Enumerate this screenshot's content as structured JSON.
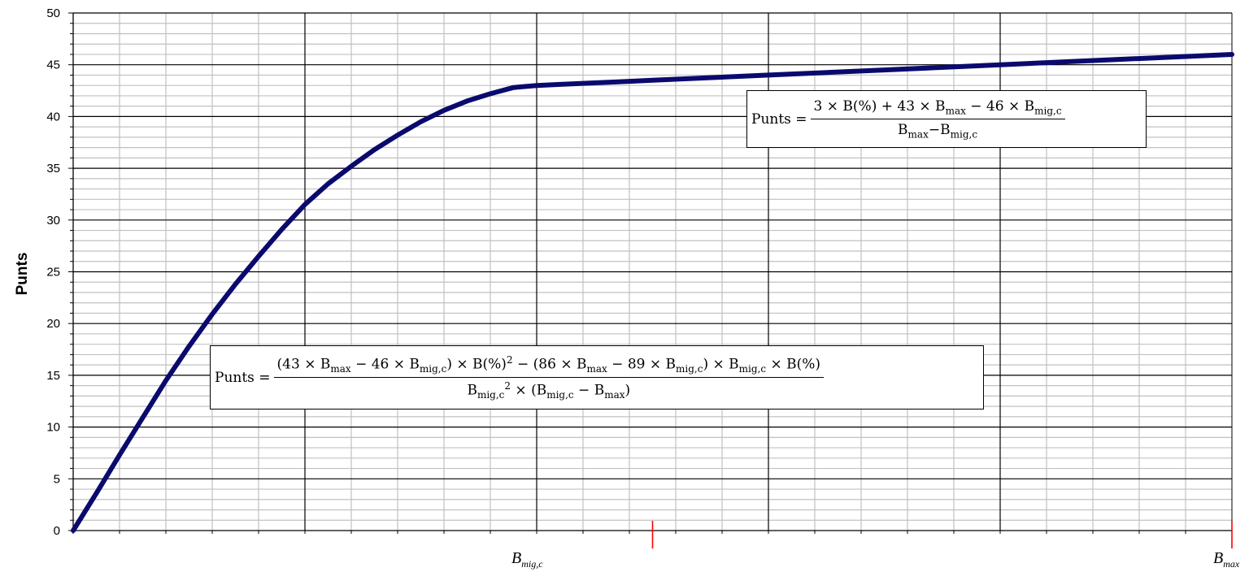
{
  "chart_data": {
    "type": "line",
    "ylabel": "Punts",
    "xlabel": "",
    "ylim": [
      0,
      50
    ],
    "yticks": [
      0,
      5,
      10,
      15,
      20,
      25,
      30,
      35,
      40,
      45,
      50
    ],
    "grid": true,
    "x_marks": [
      {
        "label_main": "B",
        "label_sub": "mig,c",
        "x": 0.5
      },
      {
        "label_main": "B",
        "label_sub": "max",
        "x": 1.0
      }
    ],
    "series": [
      {
        "color": "#0a0a6e",
        "x": [
          0,
          0.02,
          0.04,
          0.06,
          0.08,
          0.1,
          0.12,
          0.14,
          0.16,
          0.18,
          0.2,
          0.22,
          0.24,
          0.26,
          0.28,
          0.3,
          0.32,
          0.34,
          0.36,
          0.38,
          0.4,
          0.42,
          0.44,
          0.46,
          0.48,
          0.5,
          0.6,
          0.7,
          0.8,
          0.9,
          1.0
        ],
        "y": [
          0,
          3.6,
          7.3,
          10.9,
          14.5,
          17.8,
          20.9,
          23.8,
          26.5,
          29.1,
          31.5,
          33.5,
          35.2,
          36.8,
          38.2,
          39.5,
          40.6,
          41.5,
          42.2,
          42.8,
          43.0,
          43.1,
          43.2,
          43.3,
          43.4,
          43.5,
          44.0,
          44.5,
          45.0,
          45.5,
          46.0
        ]
      }
    ],
    "annotations": {
      "eq_upper": {
        "lhs": "Punts =",
        "num_a": "3 × B(%) + 43 × B",
        "num_a_sub": "max",
        "num_b": " − 46 × B",
        "num_b_sub": "mig,c",
        "den_a": "B",
        "den_a_sub": "max",
        "den_b": "−B",
        "den_b_sub": "mig,c"
      },
      "eq_lower": {
        "lhs": "Punts =",
        "num_1": "(43 × B",
        "num_1_sub": "max",
        "num_2": " − 46 × B",
        "num_2_sub": "mig,c",
        "num_3": ") × B(%)",
        "num_3_sup": "2",
        "num_4": " − (86 × B",
        "num_4_sub": "max",
        "num_5": " − 89 × B",
        "num_5_sub": "mig,c",
        "num_6": ") × B",
        "num_6_sub": "mig,c",
        "num_7": " × B(%)",
        "den_1": "B",
        "den_1_sub": "mig,c",
        "den_1_sup": "2",
        "den_2": " × (B",
        "den_2_sub": "mig,c",
        "den_3": " − B",
        "den_3_sub": "max",
        "den_4": ")"
      }
    }
  },
  "colors": {
    "line": "#0a0a6e",
    "major_grid": "#000000",
    "minor_grid": "#c0c0c0",
    "tick_mark": "#ff0000"
  }
}
